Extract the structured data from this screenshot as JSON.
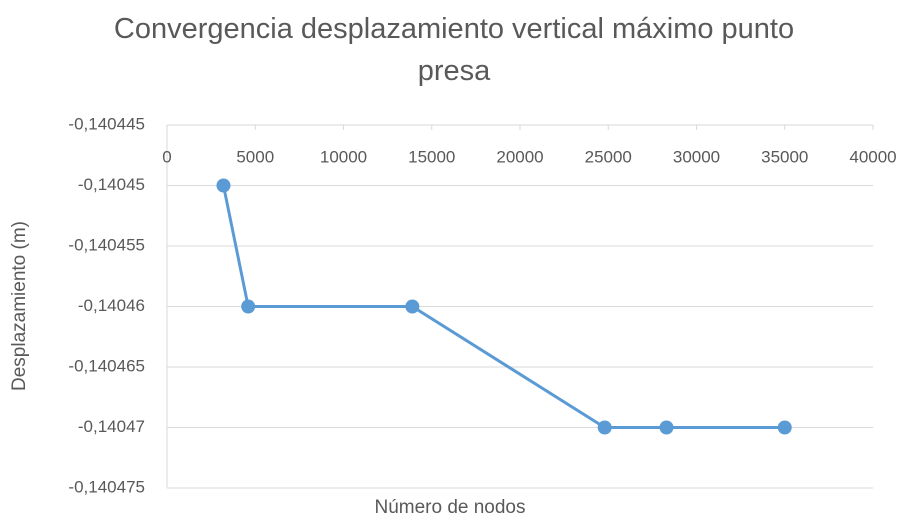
{
  "chart_data": {
    "type": "line",
    "title": "Convergencia desplazamiento vertical máximo punto presa",
    "x_label": "Número de nodos",
    "y_label": "Desplazamiento (m)",
    "x": [
      3200,
      4600,
      13900,
      24800,
      28300,
      35000
    ],
    "series": [
      {
        "name": "Desplazamiento",
        "color": "#5b9bd5",
        "values": [
          -0.14045,
          -0.14046,
          -0.14046,
          -0.14047,
          -0.14047,
          -0.14047
        ]
      }
    ],
    "xlim": [
      0,
      40000
    ],
    "xticks": [
      0,
      5000,
      10000,
      15000,
      20000,
      25000,
      30000,
      35000,
      40000
    ],
    "ylim": [
      -0.140475,
      -0.140445
    ],
    "yticks": [
      {
        "value": -0.140445,
        "label": "-0,140445"
      },
      {
        "value": -0.14045,
        "label": "-0,14045"
      },
      {
        "value": -0.140455,
        "label": "-0,140455"
      },
      {
        "value": -0.14046,
        "label": "-0,14046"
      },
      {
        "value": -0.140465,
        "label": "-0,140465"
      },
      {
        "value": -0.14047,
        "label": "-0,14047"
      },
      {
        "value": -0.140475,
        "label": "-0,140475"
      }
    ],
    "grid": true
  }
}
